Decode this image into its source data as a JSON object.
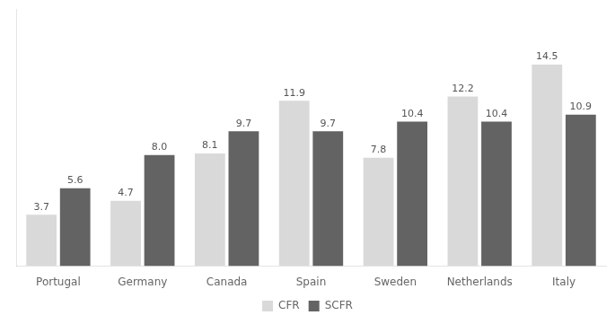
{
  "chart_data": {
    "type": "bar",
    "categories": [
      "Portugal",
      "Germany",
      "Canada",
      "Spain",
      "Sweden",
      "Netherlands",
      "Italy"
    ],
    "series": [
      {
        "name": "CFR",
        "color": "#d9d9d9",
        "values": [
          3.7,
          4.7,
          8.1,
          11.9,
          7.8,
          12.2,
          14.5
        ]
      },
      {
        "name": "SCFR",
        "color": "#636363",
        "values": [
          5.6,
          8.0,
          9.7,
          9.7,
          10.4,
          10.4,
          10.9
        ],
        "value_labels": [
          "5.6",
          "8.0",
          "9.7",
          "9.7",
          "10.4",
          "10.4",
          "10.9"
        ]
      }
    ],
    "ylim": [
      0,
      18.5
    ],
    "yticks": [],
    "grid": false,
    "legend": "bottom",
    "data_labels": true,
    "tick_labels": "x"
  }
}
